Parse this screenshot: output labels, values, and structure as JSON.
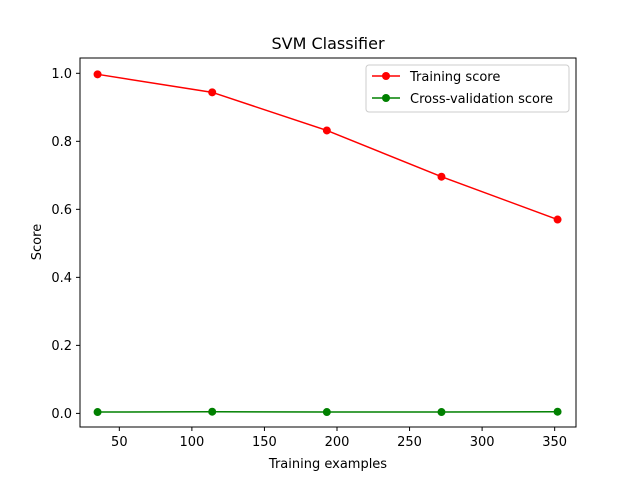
{
  "chart_data": {
    "type": "line",
    "title": "SVM Classifier",
    "xlabel": "Training examples",
    "ylabel": "Score",
    "xlim": [
      22.9,
      364.7
    ],
    "ylim": [
      -0.04,
      1.045
    ],
    "xticks": [
      50,
      100,
      150,
      200,
      250,
      300,
      350
    ],
    "yticks": [
      0.0,
      0.2,
      0.4,
      0.6,
      0.8,
      1.0
    ],
    "grid": false,
    "legend_position": "top-right",
    "x": [
      35,
      114,
      193,
      272,
      352
    ],
    "series": [
      {
        "name": "Training score",
        "color": "#ff0000",
        "marker": "circle",
        "values": [
          0.997,
          0.944,
          0.832,
          0.696,
          0.57
        ]
      },
      {
        "name": "Cross-validation score",
        "color": "#008000",
        "marker": "circle",
        "values": [
          0.004,
          0.005,
          0.004,
          0.004,
          0.005
        ]
      }
    ]
  }
}
